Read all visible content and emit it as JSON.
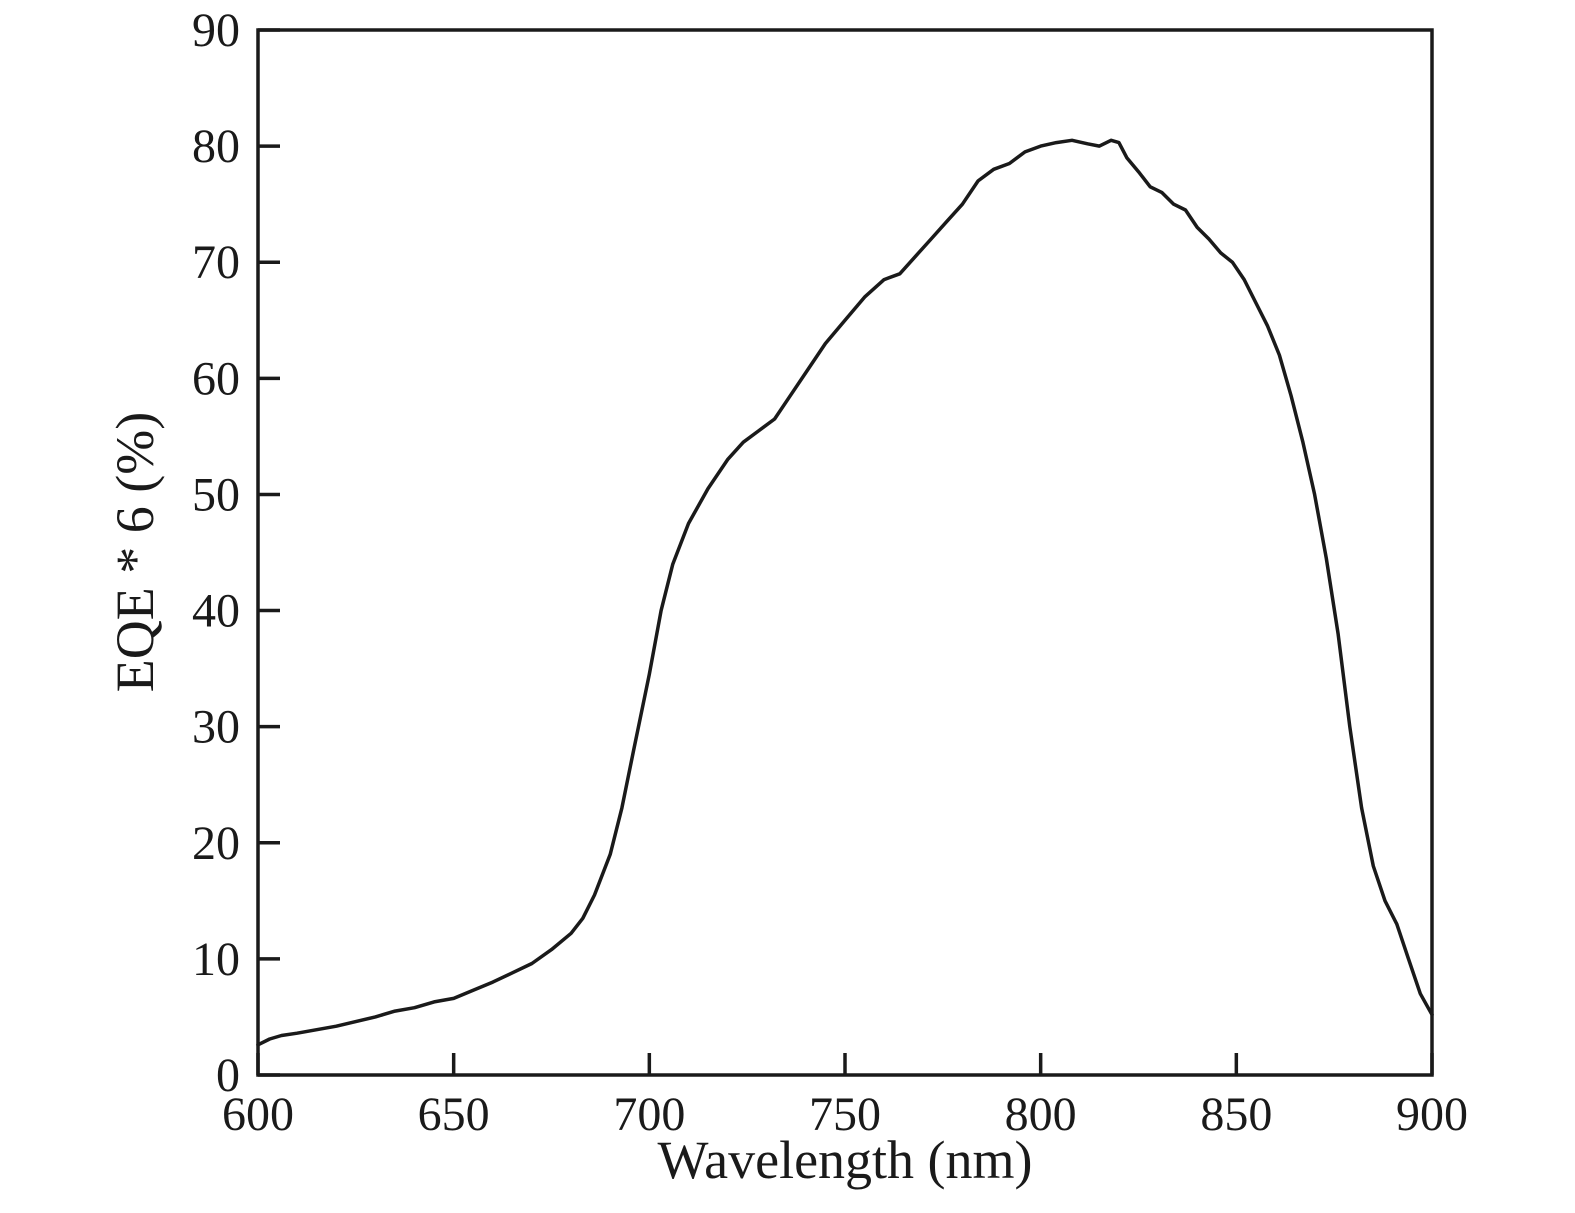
{
  "figure": {
    "background": "#ffffff",
    "frame_color": "#1a1a1a"
  },
  "chart_data": {
    "type": "line",
    "title": "",
    "xlabel": "Wavelength (nm)",
    "ylabel": "EQE * 6 (%)",
    "xlim": [
      600,
      900
    ],
    "ylim": [
      0,
      90
    ],
    "xticks": [
      600,
      650,
      700,
      750,
      800,
      850,
      900
    ],
    "yticks": [
      0,
      10,
      20,
      30,
      40,
      50,
      60,
      70,
      80,
      90
    ],
    "grid": false,
    "legend": "none",
    "line_color": "#1a1a1a",
    "line_width": 3.5,
    "series": [
      {
        "name": "EQE",
        "x": [
          600,
          603,
          606,
          610,
          615,
          620,
          625,
          630,
          635,
          640,
          645,
          650,
          655,
          660,
          665,
          670,
          675,
          680,
          683,
          686,
          690,
          693,
          696,
          700,
          703,
          706,
          710,
          715,
          720,
          724,
          728,
          732,
          736,
          740,
          745,
          750,
          755,
          760,
          764,
          768,
          772,
          776,
          780,
          784,
          788,
          792,
          796,
          800,
          804,
          808,
          812,
          815,
          818,
          820,
          822,
          825,
          828,
          831,
          834,
          837,
          840,
          843,
          846,
          849,
          852,
          855,
          858,
          861,
          864,
          867,
          870,
          873,
          876,
          879,
          882,
          885,
          888,
          891,
          894,
          897,
          899,
          900
        ],
        "y": [
          2.6,
          3.1,
          3.4,
          3.6,
          3.9,
          4.2,
          4.6,
          5.0,
          5.5,
          5.8,
          6.3,
          6.6,
          7.3,
          8.0,
          8.8,
          9.6,
          10.8,
          12.2,
          13.5,
          15.5,
          19.0,
          23.0,
          28.0,
          34.5,
          40.0,
          44.0,
          47.5,
          50.5,
          53.0,
          54.5,
          55.5,
          56.5,
          58.5,
          60.5,
          63.0,
          65.0,
          67.0,
          68.5,
          69.0,
          70.5,
          72.0,
          73.5,
          75.0,
          77.0,
          78.0,
          78.5,
          79.5,
          80.0,
          80.3,
          80.5,
          80.2,
          80.0,
          80.5,
          80.3,
          79.0,
          77.8,
          76.5,
          76.0,
          75.0,
          74.5,
          73.0,
          72.0,
          70.8,
          70.0,
          68.5,
          66.5,
          64.5,
          62.0,
          58.5,
          54.5,
          50.0,
          44.5,
          38.0,
          30.0,
          23.0,
          18.0,
          15.0,
          13.0,
          10.0,
          7.0,
          5.8,
          5.2
        ]
      }
    ]
  }
}
